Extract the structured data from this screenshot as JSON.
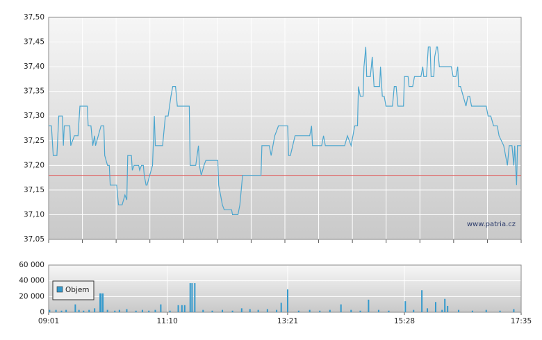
{
  "chart_data": [
    {
      "type": "line",
      "xlim": [
        "09:01",
        "17:35"
      ],
      "ylim": [
        37.05,
        37.5
      ],
      "yticks": [
        {
          "value": 37.05,
          "label": "37,05"
        },
        {
          "value": 37.1,
          "label": "37,10"
        },
        {
          "value": 37.15,
          "label": "37,15"
        },
        {
          "value": 37.2,
          "label": "37,20"
        },
        {
          "value": 37.25,
          "label": "37,25"
        },
        {
          "value": 37.3,
          "label": "37,30"
        },
        {
          "value": 37.35,
          "label": "37,35"
        },
        {
          "value": 37.4,
          "label": "37,40"
        },
        {
          "value": 37.45,
          "label": "37,45"
        },
        {
          "value": 37.5,
          "label": "37,50"
        }
      ],
      "grid": true,
      "reference_line": {
        "value": 37.18,
        "color": "#e06060"
      },
      "annotation": "www.patria.cz",
      "x": [
        "09:01",
        "09:04",
        "09:06",
        "09:10",
        "09:12",
        "09:16",
        "09:17",
        "09:18",
        "09:24",
        "09:25",
        "09:27",
        "09:29",
        "09:33",
        "09:35",
        "09:43",
        "09:44",
        "09:47",
        "09:49",
        "09:51",
        "09:52",
        "09:55",
        "09:58",
        "10:01",
        "10:02",
        "10:05",
        "10:07",
        "10:08",
        "10:15",
        "10:17",
        "10:21",
        "10:24",
        "10:26",
        "10:27",
        "10:31",
        "10:32",
        "10:34",
        "10:39",
        "10:40",
        "10:42",
        "10:44",
        "10:45",
        "10:47",
        "10:48",
        "10:51",
        "10:54",
        "10:56",
        "10:57",
        "11:05",
        "11:08",
        "11:11",
        "11:14",
        "11:16",
        "11:19",
        "11:21",
        "11:34",
        "11:35",
        "11:41",
        "11:44",
        "11:45",
        "11:47",
        "11:50",
        "11:52",
        "12:05",
        "12:06",
        "12:08",
        "12:10",
        "12:12",
        "12:20",
        "12:21",
        "12:27",
        "12:29",
        "12:32",
        "12:52",
        "12:53",
        "13:01",
        "13:03",
        "13:07",
        "13:09",
        "13:11",
        "13:21",
        "13:22",
        "13:24",
        "13:29",
        "13:45",
        "13:47",
        "13:48",
        "13:58",
        "14:00",
        "14:02",
        "14:23",
        "14:26",
        "14:30",
        "14:32",
        "14:34",
        "14:37",
        "14:38",
        "14:40",
        "14:43",
        "14:44",
        "14:46",
        "14:47",
        "14:51",
        "14:53",
        "14:55",
        "15:01",
        "15:02",
        "15:04",
        "15:06",
        "15:08",
        "15:15",
        "15:17",
        "15:19",
        "15:21",
        "15:27",
        "15:28",
        "15:32",
        "15:33",
        "15:37",
        "15:39",
        "15:46",
        "15:48",
        "15:49",
        "15:52",
        "15:54",
        "15:56",
        "15:57",
        "16:00",
        "16:01",
        "16:03",
        "16:04",
        "16:06",
        "16:19",
        "16:21",
        "16:24",
        "16:26",
        "16:27",
        "16:29",
        "16:32",
        "16:35",
        "16:37",
        "16:39",
        "16:41",
        "16:57",
        "16:59",
        "17:02",
        "17:05",
        "17:09",
        "17:11",
        "17:16",
        "17:20",
        "17:22",
        "17:25",
        "17:27",
        "17:28",
        "17:30",
        "17:31",
        "17:35"
      ],
      "series": [
        {
          "color": "#4ba6cf",
          "values": [
            37.28,
            37.28,
            37.22,
            37.22,
            37.3,
            37.3,
            37.24,
            37.28,
            37.28,
            37.24,
            37.25,
            37.26,
            37.26,
            37.32,
            37.32,
            37.28,
            37.28,
            37.24,
            37.26,
            37.24,
            37.26,
            37.28,
            37.28,
            37.22,
            37.2,
            37.2,
            37.16,
            37.16,
            37.12,
            37.12,
            37.14,
            37.13,
            37.22,
            37.22,
            37.19,
            37.2,
            37.2,
            37.19,
            37.2,
            37.2,
            37.18,
            37.16,
            37.16,
            37.18,
            37.2,
            37.3,
            37.24,
            37.24,
            37.3,
            37.3,
            37.34,
            37.36,
            37.36,
            37.32,
            37.32,
            37.2,
            37.2,
            37.24,
            37.2,
            37.18,
            37.2,
            37.21,
            37.21,
            37.16,
            37.14,
            37.12,
            37.11,
            37.11,
            37.1,
            37.1,
            37.12,
            37.18,
            37.18,
            37.24,
            37.24,
            37.22,
            37.26,
            37.27,
            37.28,
            37.28,
            37.22,
            37.22,
            37.26,
            37.26,
            37.28,
            37.24,
            37.24,
            37.26,
            37.24,
            37.24,
            37.26,
            37.24,
            37.26,
            37.28,
            37.28,
            37.36,
            37.34,
            37.34,
            37.4,
            37.44,
            37.38,
            37.38,
            37.42,
            37.36,
            37.36,
            37.4,
            37.34,
            37.34,
            37.32,
            37.32,
            37.36,
            37.36,
            37.32,
            37.32,
            37.38,
            37.38,
            37.36,
            37.36,
            37.38,
            37.38,
            37.4,
            37.38,
            37.38,
            37.44,
            37.44,
            37.38,
            37.38,
            37.42,
            37.44,
            37.44,
            37.4,
            37.4,
            37.38,
            37.38,
            37.4,
            37.36,
            37.36,
            37.34,
            37.32,
            37.34,
            37.34,
            37.32,
            37.32,
            37.3,
            37.3,
            37.28,
            37.28,
            37.26,
            37.24,
            37.2,
            37.24,
            37.24,
            37.2,
            37.24,
            37.16,
            37.24,
            37.24
          ]
        }
      ]
    },
    {
      "type": "bar",
      "xlim": [
        "09:01",
        "17:35"
      ],
      "xticks": [
        "09:01",
        "11:10",
        "13:21",
        "15:28",
        "17:35"
      ],
      "ylim": [
        0,
        60000
      ],
      "yticks": [
        0,
        {
          "value": 20000,
          "label": "20 000"
        },
        {
          "value": 40000,
          "label": "40 000"
        },
        {
          "value": 60000,
          "label": "60 000"
        }
      ],
      "grid": true,
      "legend": "upper left",
      "x": [
        "09:02",
        "09:09",
        "09:15",
        "09:20",
        "09:30",
        "09:34",
        "09:39",
        "09:45",
        "09:51",
        "09:57",
        "09:58",
        "10:00",
        "10:05",
        "10:13",
        "10:18",
        "10:26",
        "10:36",
        "10:43",
        "10:50",
        "10:57",
        "11:03",
        "11:13",
        "11:22",
        "11:26",
        "11:29",
        "11:35",
        "11:37",
        "11:40",
        "11:49",
        "11:59",
        "12:10",
        "12:21",
        "12:31",
        "12:40",
        "12:49",
        "12:59",
        "13:09",
        "13:14",
        "13:21",
        "13:33",
        "13:45",
        "13:56",
        "14:07",
        "14:19",
        "14:30",
        "14:40",
        "14:49",
        "15:00",
        "15:11",
        "15:29",
        "15:38",
        "15:47",
        "15:53",
        "16:02",
        "16:09",
        "16:12",
        "16:15",
        "16:27",
        "16:42",
        "16:57",
        "17:12",
        "17:27"
      ],
      "series": [
        {
          "name": "Objem",
          "color": "#3399cc",
          "values": [
            3000,
            3000,
            2000,
            3000,
            10000,
            3000,
            2000,
            3000,
            5000,
            24000,
            24000,
            24000,
            3000,
            2000,
            3000,
            4000,
            2000,
            3000,
            2000,
            3000,
            10000,
            2000,
            9000,
            9000,
            9000,
            37000,
            37000,
            37000,
            3000,
            2000,
            3000,
            2000,
            5000,
            4000,
            3000,
            4000,
            3000,
            12000,
            29000,
            2000,
            3000,
            2000,
            3000,
            10000,
            3000,
            2000,
            16000,
            3000,
            2000,
            14000,
            3000,
            28000,
            5000,
            13000,
            3000,
            17000,
            8000,
            3000,
            2000,
            3000,
            2000,
            4000
          ]
        }
      ]
    }
  ]
}
